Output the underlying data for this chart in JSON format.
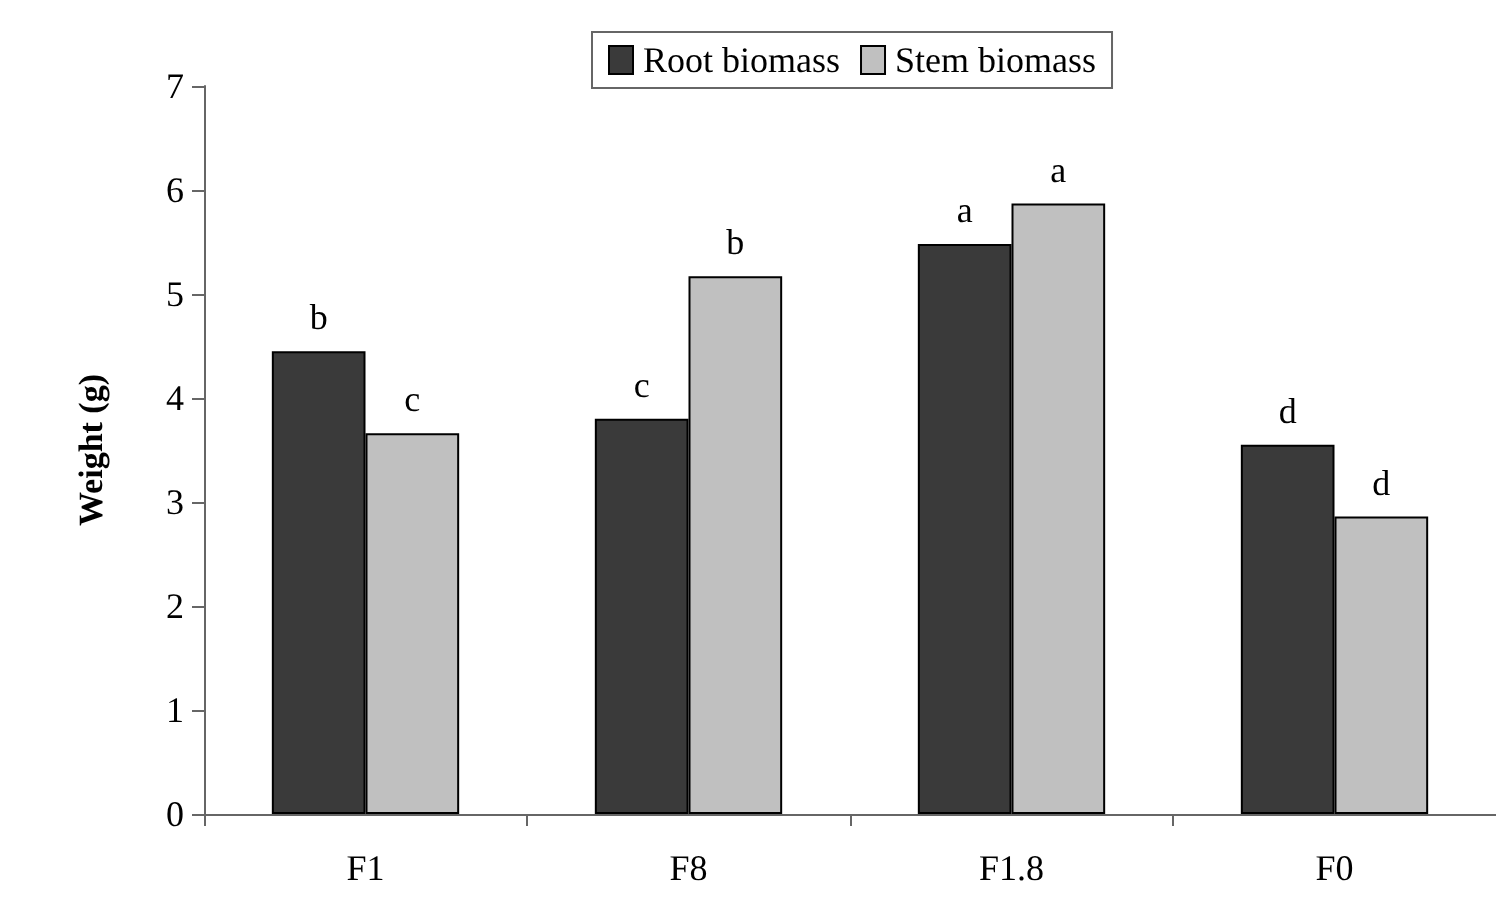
{
  "chart_data": {
    "type": "bar",
    "ylabel": "Weight (g)",
    "categories": [
      "F1",
      "F8",
      "F1.8",
      "F0"
    ],
    "series": [
      {
        "name": "Root biomass",
        "color": "#3a3a3a",
        "values": [
          4.45,
          3.8,
          5.48,
          3.55
        ],
        "value_labels": [
          "b",
          "c",
          "a",
          "d"
        ]
      },
      {
        "name": "Stem biomass",
        "color": "#c0c0c0",
        "values": [
          3.66,
          5.17,
          5.87,
          2.86
        ],
        "value_labels": [
          "c",
          "b",
          "a",
          "d"
        ]
      }
    ],
    "ylim": [
      0,
      7
    ],
    "yticks": [
      0,
      1,
      2,
      3,
      4,
      5,
      6,
      7
    ],
    "grid": false,
    "legend": "top"
  }
}
